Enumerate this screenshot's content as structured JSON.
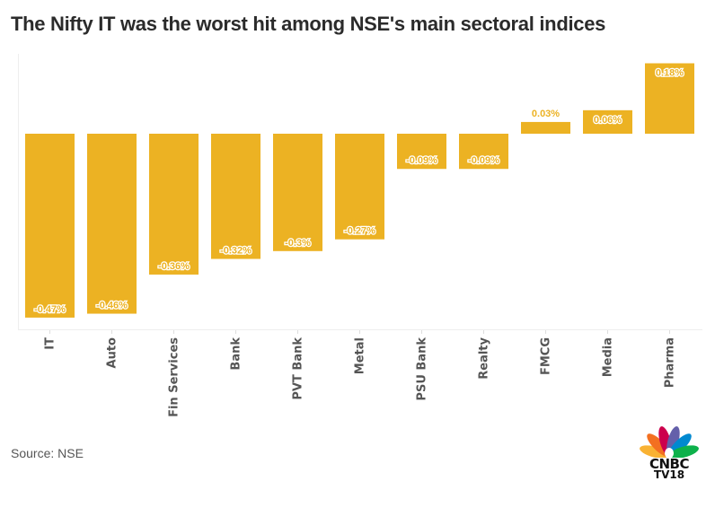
{
  "chart_data": {
    "type": "bar",
    "title": "The Nifty IT was the worst hit among NSE's main sectoral indices",
    "xlabel": "",
    "ylabel": "",
    "categories": [
      "IT",
      "Auto",
      "Fin Services",
      "Bank",
      "PVT Bank",
      "Metal",
      "PSU Bank",
      "Realty",
      "FMCG",
      "Media",
      "Pharma"
    ],
    "values": [
      -0.47,
      -0.46,
      -0.36,
      -0.32,
      -0.3,
      -0.27,
      -0.09,
      -0.09,
      0.03,
      0.06,
      0.18
    ],
    "data_labels": [
      "-0.47%",
      "-0.46%",
      "-0.36%",
      "-0.32%",
      "-0.3%",
      "-0.27%",
      "-0.09%",
      "-0.09%",
      "0.03%",
      "0.06%",
      "0.18%"
    ],
    "unit": "%",
    "ylim": [
      -0.5,
      0.2
    ],
    "grid": false,
    "legend": "none",
    "bar_color": "#ECB223",
    "source": "Source: NSE"
  },
  "branding": {
    "logo_line1": "CNBC",
    "logo_line2": "TV18"
  }
}
